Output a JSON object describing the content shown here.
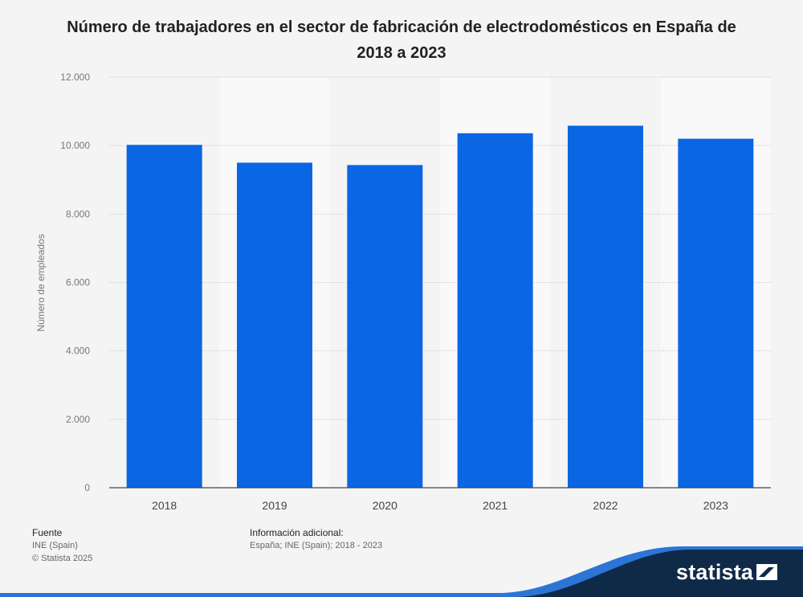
{
  "title": "Número de trabajadores en el sector de fabricación de electrodomésticos en España de 2018 a 2023",
  "chart_data": {
    "type": "bar",
    "categories": [
      "2018",
      "2019",
      "2020",
      "2021",
      "2022",
      "2023"
    ],
    "values": [
      10020,
      9500,
      9430,
      10360,
      10580,
      10200
    ],
    "ylabel": "Número de empleados",
    "xlabel": "",
    "ylim": [
      0,
      12000
    ],
    "yticks": [
      0,
      2000,
      4000,
      6000,
      8000,
      10000,
      12000
    ],
    "ytick_labels": [
      "0",
      "2.000",
      "4.000",
      "6.000",
      "8.000",
      "10.000",
      "12.000"
    ],
    "grid": true,
    "bar_color": "#0b66e4"
  },
  "footer": {
    "source_label": "Fuente",
    "source_value": "INE (Spain)",
    "copyright": "© Statista 2025",
    "info_label": "Información adicional:",
    "info_value": "España; INE (Spain); 2018 - 2023"
  },
  "brand": {
    "name": "statista",
    "band_color": "#0f2a48",
    "accent_color": "#2c75d6"
  }
}
